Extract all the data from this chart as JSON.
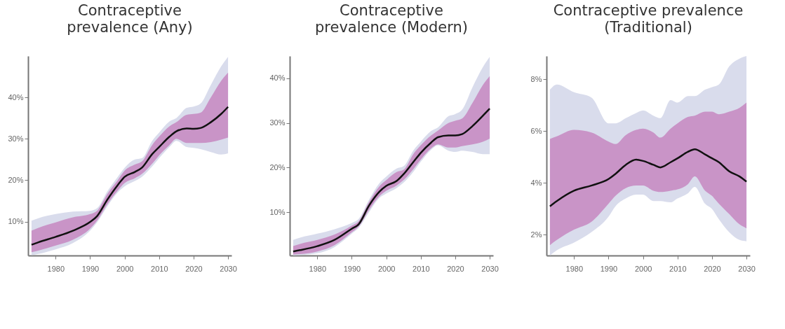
{
  "chart_data": [
    {
      "type": "line",
      "title": "Contraceptive\nprevalence (Any)",
      "x": [
        1973,
        1975,
        1980,
        1985,
        1990,
        1992,
        1995,
        1998,
        2000,
        2003,
        2005,
        2008,
        2010,
        2013,
        2015,
        2018,
        2020,
        2022,
        2025,
        2028,
        2030
      ],
      "xlim": [
        1972,
        2031
      ],
      "xticks": [
        1980,
        1990,
        2000,
        2010,
        2020,
        2030
      ],
      "ylim": [
        1.8,
        50
      ],
      "yticks": [
        {
          "value": 10,
          "label": "10%"
        },
        {
          "value": 20,
          "label": "20%"
        },
        {
          "value": 30,
          "label": "30%"
        },
        {
          "value": 40,
          "label": "40%"
        }
      ],
      "grid": false,
      "series": [
        {
          "color": "#d9dcec",
          "values": [
            null,
            null,
            null,
            null,
            null,
            null,
            null,
            null,
            null,
            null,
            null,
            null,
            null,
            null,
            null,
            null,
            null,
            null,
            null,
            null,
            null
          ],
          "lower": [
            1.9,
            2.2,
            3.3,
            4.8,
            7.8,
            9.8,
            13.7,
            17.0,
            18.5,
            19.8,
            20.8,
            23.3,
            25.3,
            28.0,
            29.5,
            28.0,
            27.8,
            27.5,
            26.8,
            26.2,
            26.5
          ],
          "upper": [
            10.2,
            10.8,
            11.8,
            12.4,
            12.6,
            13.2,
            17.3,
            20.8,
            23.0,
            25.0,
            25.3,
            29.5,
            31.5,
            34.2,
            35.0,
            37.5,
            37.8,
            38.5,
            43.0,
            47.5,
            49.8
          ]
        },
        {
          "color": "#c994c7",
          "values": [
            null,
            null,
            null,
            null,
            null,
            null,
            null,
            null,
            null,
            null,
            null,
            null,
            null,
            null,
            null,
            null,
            null,
            null,
            null,
            null,
            null
          ],
          "lower": [
            2.6,
            3.0,
            4.2,
            5.6,
            8.3,
            10.2,
            14.2,
            17.5,
            19.3,
            20.5,
            21.5,
            24.0,
            26.0,
            28.5,
            30.0,
            29.0,
            29.0,
            29.0,
            29.2,
            29.8,
            30.3
          ],
          "upper": [
            7.8,
            8.5,
            9.8,
            11.0,
            11.8,
            12.6,
            16.7,
            20.0,
            22.3,
            23.8,
            24.5,
            28.5,
            30.5,
            33.0,
            34.0,
            35.8,
            36.0,
            36.3,
            40.0,
            44.0,
            46.0
          ]
        },
        {
          "color": "#111111",
          "values": [
            4.4,
            5.0,
            6.3,
            7.8,
            9.9,
            11.3,
            15.3,
            18.8,
            20.8,
            22.0,
            23.0,
            26.3,
            28.0,
            30.5,
            31.8,
            32.5,
            32.4,
            32.6,
            34.0,
            36.0,
            37.7
          ]
        }
      ]
    },
    {
      "type": "line",
      "title": "Contraceptive\nprevalence (Modern)",
      "x": [
        1973,
        1975,
        1980,
        1985,
        1990,
        1992,
        1995,
        1998,
        2000,
        2003,
        2005,
        2008,
        2010,
        2013,
        2015,
        2018,
        2020,
        2022,
        2025,
        2028,
        2030
      ],
      "xlim": [
        1972,
        2031
      ],
      "xticks": [
        1980,
        1990,
        2000,
        2010,
        2020,
        2030
      ],
      "ylim": [
        0.3,
        45
      ],
      "yticks": [
        {
          "value": 10,
          "label": "10%"
        },
        {
          "value": 20,
          "label": "20%"
        },
        {
          "value": 30,
          "label": "30%"
        },
        {
          "value": 40,
          "label": "40%"
        }
      ],
      "grid": false,
      "series": [
        {
          "color": "#d9dcec",
          "values": [
            null,
            null,
            null,
            null,
            null,
            null,
            null,
            null,
            null,
            null,
            null,
            null,
            null,
            null,
            null,
            null,
            null,
            null,
            null,
            null,
            null
          ],
          "lower": [
            0.3,
            0.4,
            0.8,
            2.2,
            5.2,
            6.5,
            10.0,
            13.2,
            14.2,
            15.4,
            16.6,
            19.2,
            21.3,
            24.0,
            25.0,
            23.8,
            23.5,
            23.8,
            23.5,
            23.0,
            23.0
          ],
          "upper": [
            3.8,
            4.3,
            5.2,
            6.2,
            7.6,
            8.5,
            12.8,
            16.5,
            18.0,
            19.8,
            20.3,
            24.0,
            25.8,
            28.2,
            29.0,
            31.5,
            32.0,
            33.0,
            38.0,
            42.5,
            44.8
          ]
        },
        {
          "color": "#c994c7",
          "values": [
            null,
            null,
            null,
            null,
            null,
            null,
            null,
            null,
            null,
            null,
            null,
            null,
            null,
            null,
            null,
            null,
            null,
            null,
            null,
            null,
            null
          ],
          "lower": [
            0.5,
            0.6,
            1.2,
            2.6,
            5.5,
            6.8,
            10.5,
            13.6,
            14.8,
            16.0,
            17.2,
            19.8,
            21.8,
            24.3,
            25.2,
            24.5,
            24.5,
            24.8,
            25.2,
            25.8,
            26.5
          ],
          "upper": [
            2.4,
            2.9,
            3.8,
            5.0,
            7.0,
            8.0,
            12.3,
            15.8,
            17.2,
            19.0,
            19.5,
            23.2,
            25.0,
            27.2,
            28.3,
            30.0,
            30.5,
            31.0,
            34.5,
            38.5,
            40.5
          ]
        },
        {
          "color": "#111111",
          "values": [
            1.2,
            1.5,
            2.4,
            3.8,
            6.3,
            7.3,
            11.5,
            14.6,
            15.9,
            17.0,
            18.5,
            21.4,
            23.3,
            25.6,
            26.8,
            27.2,
            27.2,
            27.5,
            29.3,
            31.6,
            33.2
          ]
        }
      ]
    },
    {
      "type": "line",
      "title": "Contraceptive prevalence\n(Traditional)",
      "x": [
        1973,
        1975,
        1980,
        1985,
        1990,
        1992,
        1995,
        1998,
        2000,
        2003,
        2005,
        2008,
        2010,
        2013,
        2015,
        2018,
        2020,
        2022,
        2025,
        2028,
        2030
      ],
      "xlim": [
        1972,
        2031
      ],
      "xticks": [
        1980,
        1990,
        2000,
        2010,
        2020,
        2030
      ],
      "ylim": [
        1.2,
        8.9
      ],
      "yticks": [
        {
          "value": 2,
          "label": "2%"
        },
        {
          "value": 4,
          "label": "4%"
        },
        {
          "value": 6,
          "label": "6%"
        },
        {
          "value": 8,
          "label": "8%"
        }
      ],
      "grid": false,
      "series": [
        {
          "color": "#d9dcec",
          "values": [
            null,
            null,
            null,
            null,
            null,
            null,
            null,
            null,
            null,
            null,
            null,
            null,
            null,
            null,
            null,
            null,
            null,
            null,
            null,
            null,
            null
          ],
          "lower": [
            1.2,
            1.4,
            1.7,
            2.1,
            2.7,
            3.1,
            3.4,
            3.55,
            3.55,
            3.3,
            3.3,
            3.25,
            3.4,
            3.6,
            3.85,
            3.2,
            3.0,
            2.6,
            2.1,
            1.8,
            1.75
          ],
          "upper": [
            7.6,
            7.8,
            7.5,
            7.3,
            6.3,
            6.3,
            6.5,
            6.7,
            6.8,
            6.6,
            6.5,
            7.2,
            7.1,
            7.35,
            7.35,
            7.6,
            7.7,
            7.8,
            8.5,
            8.8,
            8.9
          ]
        },
        {
          "color": "#c994c7",
          "values": [
            null,
            null,
            null,
            null,
            null,
            null,
            null,
            null,
            null,
            null,
            null,
            null,
            null,
            null,
            null,
            null,
            null,
            null,
            null,
            null,
            null
          ],
          "lower": [
            1.6,
            1.8,
            2.2,
            2.5,
            3.2,
            3.5,
            3.8,
            3.9,
            3.9,
            3.7,
            3.65,
            3.7,
            3.75,
            3.95,
            4.25,
            3.7,
            3.5,
            3.2,
            2.8,
            2.4,
            2.25
          ],
          "upper": [
            5.7,
            5.8,
            6.05,
            5.95,
            5.6,
            5.5,
            5.85,
            6.05,
            6.1,
            5.95,
            5.75,
            6.1,
            6.3,
            6.55,
            6.6,
            6.75,
            6.75,
            6.65,
            6.75,
            6.9,
            7.1
          ]
        },
        {
          "color": "#111111",
          "values": [
            3.1,
            3.3,
            3.7,
            3.9,
            4.15,
            4.35,
            4.7,
            4.9,
            4.85,
            4.7,
            4.6,
            4.8,
            4.95,
            5.2,
            5.3,
            5.1,
            4.95,
            4.8,
            4.45,
            4.25,
            4.05
          ]
        }
      ]
    }
  ]
}
